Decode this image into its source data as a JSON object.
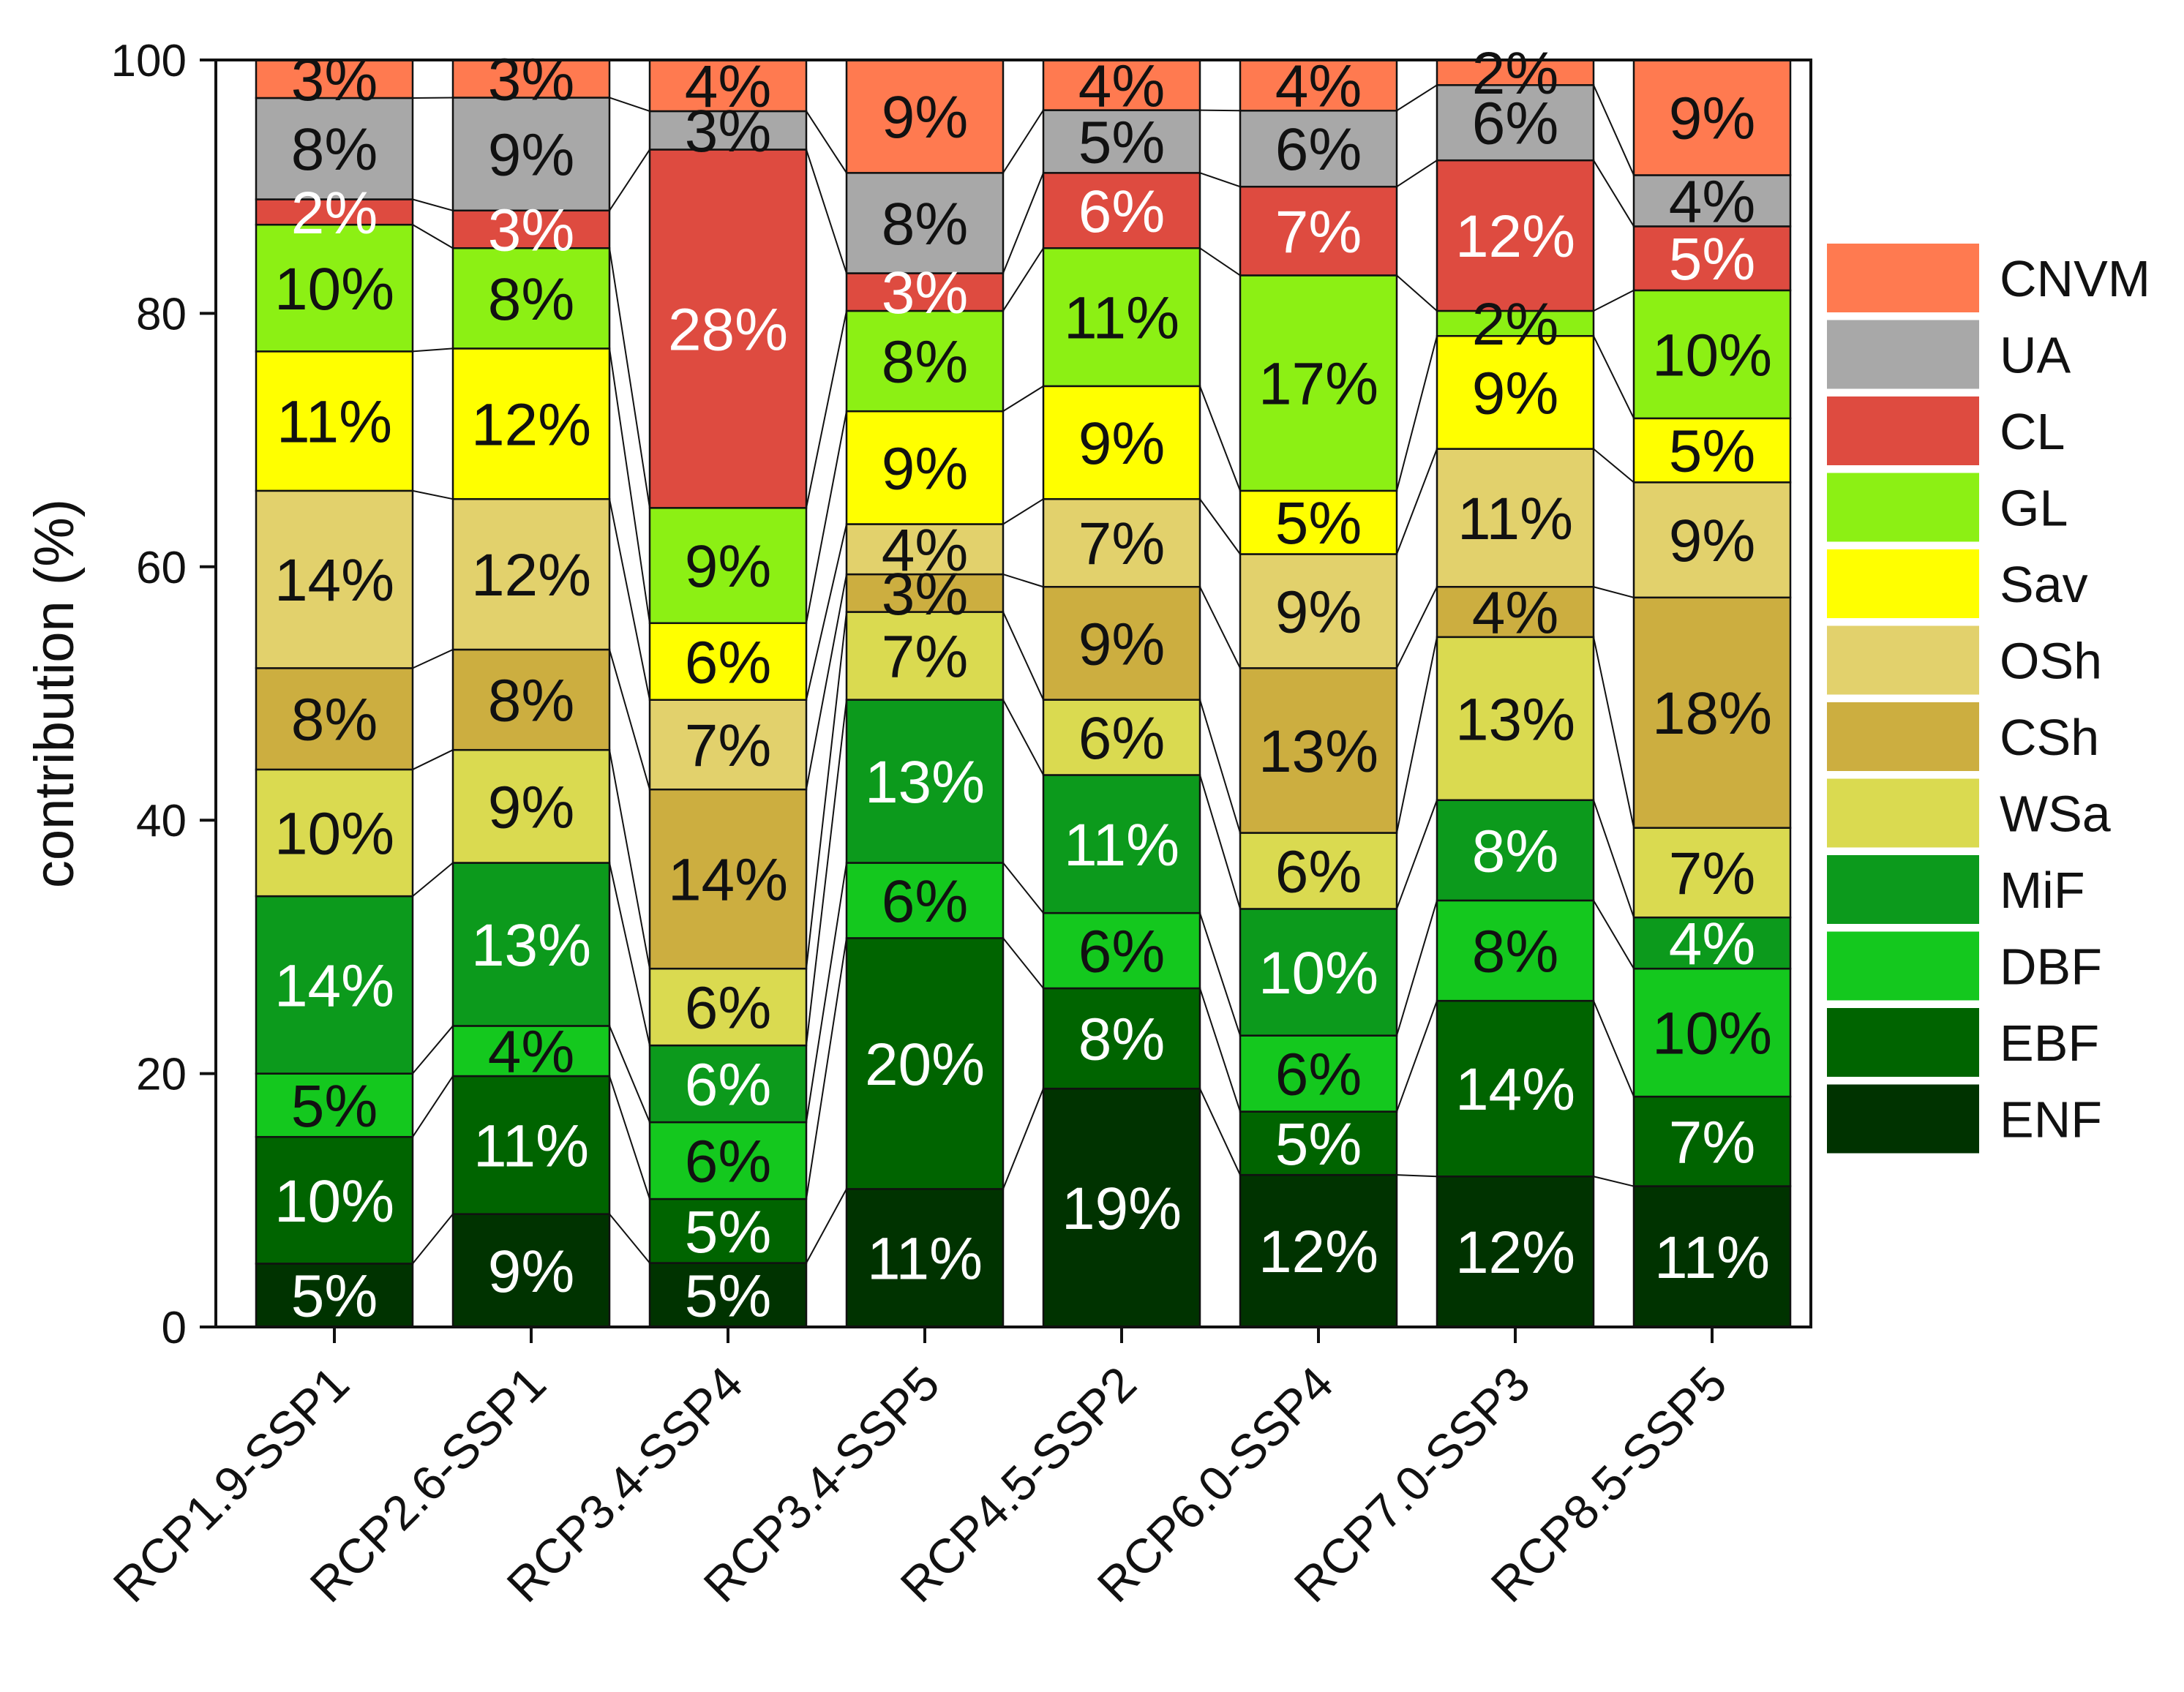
{
  "chart_data": {
    "type": "bar",
    "stacked": true,
    "title": "",
    "xlabel": "",
    "ylabel": "contribution (%)",
    "ylim": [
      0,
      100
    ],
    "yticks": [
      0,
      20,
      40,
      60,
      80,
      100
    ],
    "grid": false,
    "legend_position": "right",
    "categories": [
      "RCP1.9-SSP1",
      "RCP2.6-SSP1",
      "RCP3.4-SSP4",
      "RCP3.4-SSP5",
      "RCP4.5-SSP2",
      "RCP6.0-SSP4",
      "RCP7.0-SSP3",
      "RCP8.5-SSP5"
    ],
    "series": [
      {
        "name": "ENF",
        "color": "#003300",
        "label_color": "#ffffff",
        "values": [
          5,
          9,
          5,
          11,
          19,
          12,
          12,
          11
        ]
      },
      {
        "name": "EBF",
        "color": "#006400",
        "label_color": "#ffffff",
        "values": [
          10,
          11,
          5,
          20,
          8,
          5,
          14,
          7
        ]
      },
      {
        "name": "DBF",
        "color": "#14c81e",
        "label_color": "#111111",
        "values": [
          5,
          4,
          6,
          6,
          6,
          6,
          8,
          10
        ]
      },
      {
        "name": "MiF",
        "color": "#0c9a1c",
        "label_color": "#ffffff",
        "values": [
          14,
          13,
          6,
          13,
          11,
          10,
          8,
          4
        ]
      },
      {
        "name": "WSa",
        "color": "#dada50",
        "label_color": "#111111",
        "values": [
          10,
          9,
          6,
          7,
          6,
          6,
          13,
          7
        ]
      },
      {
        "name": "CSh",
        "color": "#ccae40",
        "label_color": "#111111",
        "values": [
          8,
          8,
          14,
          3,
          9,
          13,
          4,
          18
        ]
      },
      {
        "name": "OSh",
        "color": "#e2d16c",
        "label_color": "#111111",
        "values": [
          14,
          12,
          7,
          4,
          7,
          9,
          11,
          9
        ]
      },
      {
        "name": "Sav",
        "color": "#ffff00",
        "label_color": "#111111",
        "values": [
          11,
          12,
          6,
          9,
          9,
          5,
          9,
          5
        ]
      },
      {
        "name": "GL",
        "color": "#8cf014",
        "label_color": "#111111",
        "values": [
          10,
          8,
          9,
          8,
          11,
          17,
          2,
          10
        ]
      },
      {
        "name": "CL",
        "color": "#de4b40",
        "label_color": "#ffffff",
        "values": [
          2,
          3,
          28,
          3,
          6,
          7,
          12,
          5
        ]
      },
      {
        "name": "UA",
        "color": "#a8a8a8",
        "label_color": "#111111",
        "values": [
          8,
          9,
          3,
          8,
          5,
          6,
          6,
          4
        ]
      },
      {
        "name": "CNVM",
        "color": "#ff7a50",
        "label_color": "#111111",
        "values": [
          3,
          3,
          4,
          9,
          4,
          4,
          2,
          9
        ]
      }
    ],
    "annotations": {
      "seg_labels": [
        [
          "5%",
          "9%",
          "5%",
          "11%",
          "19%",
          "12%",
          "12%",
          "11%"
        ],
        [
          "10%",
          "11%",
          "5%",
          "20%",
          "8%",
          "5%",
          "14%",
          "7%"
        ],
        [
          "5%",
          "4%",
          "6%",
          "6%",
          "6%",
          "6%",
          "8%",
          "10%"
        ],
        [
          "14%",
          "13%",
          "6%",
          "13%",
          "11%",
          "10%",
          "8%",
          "4%"
        ],
        [
          "10%",
          "9%",
          "6%",
          "7%",
          "6%",
          "6%",
          "13%",
          "7%"
        ],
        [
          "8%",
          "8%",
          "14%",
          "3%",
          "9%",
          "13%",
          "4%",
          "18%"
        ],
        [
          "14%",
          "12%",
          "7%",
          "4%",
          "7%",
          "9%",
          "11%",
          "9%"
        ],
        [
          "11%",
          "12%",
          "6%",
          "9%",
          "9%",
          "5%",
          "9%",
          "5%"
        ],
        [
          "10%",
          "8%",
          "9%",
          "8%",
          "11%",
          "17%",
          "2%",
          "10%"
        ],
        [
          "2%",
          "3%",
          "28%",
          "3%",
          "6%",
          "7%",
          "12%",
          "5%"
        ],
        [
          "8%",
          "9%",
          "3%",
          "8%",
          "5%",
          "6%",
          "6%",
          "4%"
        ],
        [
          "3%",
          "3%",
          "4%",
          "9%",
          "4%",
          "4%",
          "2%",
          "9%"
        ]
      ]
    }
  }
}
